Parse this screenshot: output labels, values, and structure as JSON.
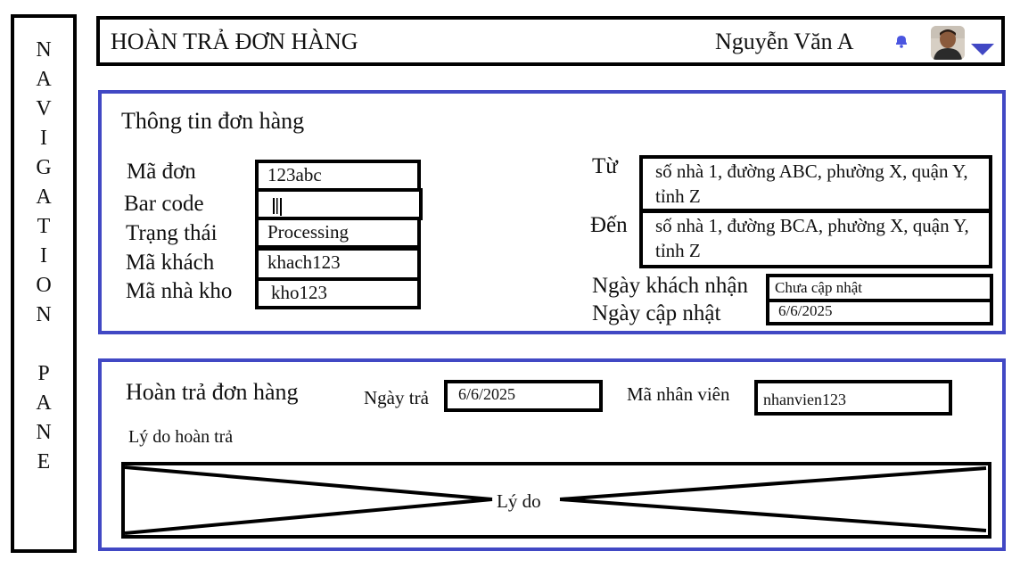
{
  "nav": {
    "label": "NAVIGATION PANE",
    "letters": [
      "N",
      "A",
      "V",
      "I",
      "G",
      "A",
      "T",
      "I",
      "O",
      "N",
      " ",
      "P",
      "A",
      "N",
      "E"
    ]
  },
  "header": {
    "title": "HOÀN TRẢ ĐƠN HÀNG",
    "user_name": "Nguyễn Văn A",
    "icons": [
      "bell-icon",
      "avatar",
      "chevron-down-icon"
    ]
  },
  "colors": {
    "panel_border": "#4148c4",
    "accent": "#4148c4"
  },
  "order_info": {
    "title": "Thông tin đơn hàng",
    "fields": {
      "order_id": {
        "label": "Mã đơn",
        "value": "123abc"
      },
      "barcode": {
        "label": "Bar code"
      },
      "status": {
        "label": "Trạng thái",
        "value": "Processing"
      },
      "customer_id": {
        "label": "Mã khách",
        "value": "khach123"
      },
      "warehouse_id": {
        "label": "Mã nhà kho",
        "value": "kho123"
      }
    },
    "from": {
      "label": "Từ",
      "value": "số nhà 1, đường ABC, phường X, quận Y, tỉnh Z"
    },
    "to": {
      "label": "Đến",
      "value": "số nhà 1, đường BCA, phường X, quận Y, tỉnh Z"
    },
    "received_date": {
      "label": "Ngày khách nhận",
      "value": "Chưa cập nhật"
    },
    "updated_date": {
      "label": "Ngày cập nhật",
      "value": "6/6/2025"
    }
  },
  "return_info": {
    "title": "Hoàn trả đơn hàng",
    "return_date": {
      "label": "Ngày trả",
      "value": "6/6/2025"
    },
    "employee_id": {
      "label": "Mã nhân viên",
      "value": "nhanvien123"
    },
    "reason": {
      "label": "Lý do hoàn trả",
      "placeholder": "Lý do"
    }
  }
}
